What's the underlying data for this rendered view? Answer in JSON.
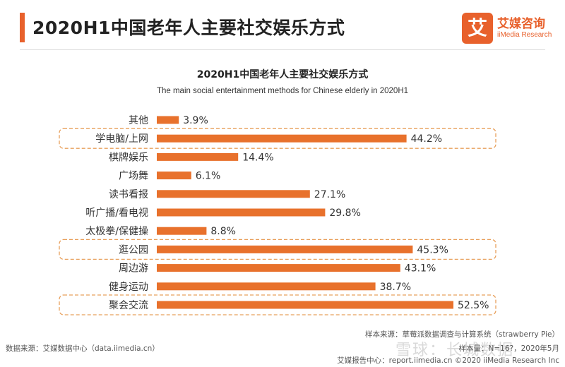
{
  "header": {
    "title": "2020H1中国老年人主要社交娱乐方式",
    "logo_glyph": "艾",
    "logo_cn": "艾媒咨询",
    "logo_en": "iiMedia Research"
  },
  "colors": {
    "accent": "#e8612c",
    "bar": "#e8712c",
    "highlight_border": "#e8a05c"
  },
  "chart_data": {
    "type": "bar",
    "orientation": "horizontal",
    "title": "2020H1中国老年人主要社交娱乐方式",
    "subtitle": "The main social entertainment methods for Chinese elderly in 2020H1",
    "unit": "%",
    "xlim": [
      0,
      100
    ],
    "categories": [
      "其他",
      "学电脑/上网",
      "棋牌娱乐",
      "广场舞",
      "读书看报",
      "听广播/看电视",
      "太极拳/保健操",
      "逛公园",
      "周边游",
      "健身运动",
      "聚会交流"
    ],
    "values": [
      3.9,
      44.2,
      14.4,
      6.1,
      27.1,
      29.8,
      8.8,
      45.3,
      43.1,
      38.7,
      52.5
    ],
    "labels": [
      "3.9%",
      "44.2%",
      "14.4%",
      "6.1%",
      "27.1%",
      "29.8%",
      "8.8%",
      "45.3%",
      "43.1%",
      "38.7%",
      "52.5%"
    ],
    "highlighted": [
      "学电脑/上网",
      "逛公园",
      "聚会交流"
    ]
  },
  "sources": {
    "sample": "样本来源：草莓派数据调查与计算系统（strawberry Pie）",
    "data": "数据来源：艾媒数据中心（data.iimedia.cn）",
    "sample_n": "样本量：N=16?，2020年5月",
    "footer": "艾媒报告中心：report.iimedia.cn  ©2020  iiMedia Research Inc",
    "watermark": "雪球：长城数据"
  }
}
